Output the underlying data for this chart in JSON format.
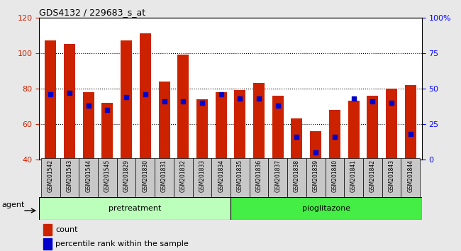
{
  "title": "GDS4132 / 229683_s_at",
  "samples": [
    "GSM201542",
    "GSM201543",
    "GSM201544",
    "GSM201545",
    "GSM201829",
    "GSM201830",
    "GSM201831",
    "GSM201832",
    "GSM201833",
    "GSM201834",
    "GSM201835",
    "GSM201836",
    "GSM201837",
    "GSM201838",
    "GSM201839",
    "GSM201840",
    "GSM201841",
    "GSM201842",
    "GSM201843",
    "GSM201844"
  ],
  "counts": [
    107,
    105,
    78,
    72,
    107,
    111,
    84,
    99,
    74,
    78,
    79,
    83,
    76,
    63,
    56,
    68,
    73,
    76,
    80,
    82
  ],
  "percentiles": [
    46,
    47,
    38,
    35,
    44,
    46,
    41,
    41,
    40,
    46,
    43,
    43,
    38,
    16,
    5,
    16,
    43,
    41,
    40,
    18
  ],
  "pretreatment_count": 10,
  "pioglitazone_count": 10,
  "bar_color": "#cc2200",
  "dot_color": "#0000cc",
  "ylim_left": [
    40,
    120
  ],
  "ylim_right": [
    0,
    100
  ],
  "yticks_left": [
    40,
    60,
    80,
    100,
    120
  ],
  "yticks_right": [
    0,
    25,
    50,
    75,
    100
  ],
  "ytick_labels_right": [
    "0",
    "25",
    "50",
    "75",
    "100%"
  ],
  "bg_color": "#e8e8e8",
  "plot_bg": "#ffffff",
  "agent_label": "agent",
  "group1_label": "pretreatment",
  "group2_label": "pioglitazone",
  "group1_color": "#bbffbb",
  "group2_color": "#44ee44",
  "legend_count_label": "count",
  "legend_pct_label": "percentile rank within the sample"
}
